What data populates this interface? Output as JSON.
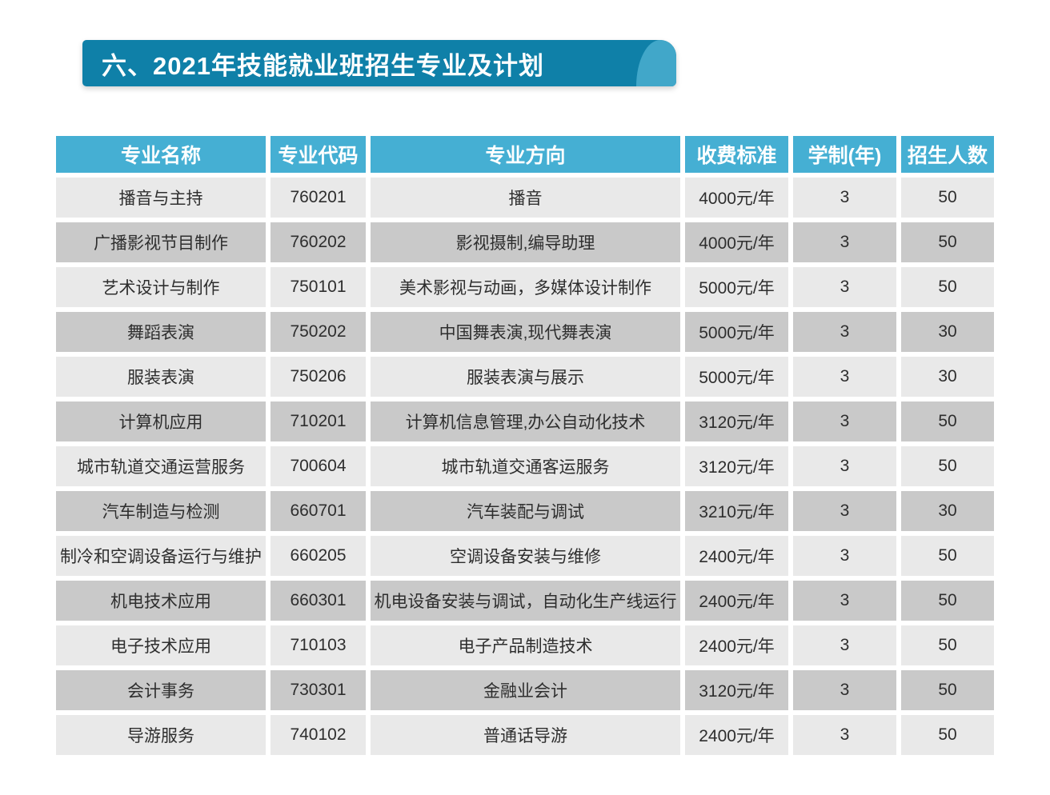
{
  "banner": {
    "title": "六、2021年技能就业班招生专业及计划",
    "background_color": "#0f80a8",
    "accent_color": "#41a7c9"
  },
  "table": {
    "columns": [
      "专业名称",
      "专业代码",
      "专业方向",
      "收费标准",
      "学制(年)",
      "招生人数"
    ],
    "header_background": "#45afd3",
    "row_color_odd": "#e9e9e9",
    "row_color_even": "#c9c9c9",
    "rows": [
      {
        "major": "播音与主持",
        "code": "760201",
        "direction": "播音",
        "fee": "4000元/年",
        "years": "3",
        "enrollment": "50"
      },
      {
        "major": "广播影视节目制作",
        "code": "760202",
        "direction": "影视摄制,编导助理",
        "fee": "4000元/年",
        "years": "3",
        "enrollment": "50"
      },
      {
        "major": "艺术设计与制作",
        "code": "750101",
        "direction": "美术影视与动画，多媒体设计制作",
        "fee": "5000元/年",
        "years": "3",
        "enrollment": "50"
      },
      {
        "major": "舞蹈表演",
        "code": "750202",
        "direction": "中国舞表演,现代舞表演",
        "fee": "5000元/年",
        "years": "3",
        "enrollment": "30"
      },
      {
        "major": "服装表演",
        "code": "750206",
        "direction": "服装表演与展示",
        "fee": "5000元/年",
        "years": "3",
        "enrollment": "30"
      },
      {
        "major": "计算机应用",
        "code": "710201",
        "direction": "计算机信息管理,办公自动化技术",
        "fee": "3120元/年",
        "years": "3",
        "enrollment": "50"
      },
      {
        "major": "城市轨道交通运营服务",
        "code": "700604",
        "direction": "城市轨道交通客运服务",
        "fee": "3120元/年",
        "years": "3",
        "enrollment": "50"
      },
      {
        "major": "汽车制造与检测",
        "code": "660701",
        "direction": "汽车装配与调试",
        "fee": "3210元/年",
        "years": "3",
        "enrollment": "30"
      },
      {
        "major": "制冷和空调设备运行与维护",
        "code": "660205",
        "direction": "空调设备安装与维修",
        "fee": "2400元/年",
        "years": "3",
        "enrollment": "50"
      },
      {
        "major": "机电技术应用",
        "code": "660301",
        "direction": "机电设备安装与调试，自动化生产线运行",
        "fee": "2400元/年",
        "years": "3",
        "enrollment": "50"
      },
      {
        "major": "电子技术应用",
        "code": "710103",
        "direction": "电子产品制造技术",
        "fee": "2400元/年",
        "years": "3",
        "enrollment": "50"
      },
      {
        "major": "会计事务",
        "code": "730301",
        "direction": "金融业会计",
        "fee": "3120元/年",
        "years": "3",
        "enrollment": "50"
      },
      {
        "major": "导游服务",
        "code": "740102",
        "direction": "普通话导游",
        "fee": "2400元/年",
        "years": "3",
        "enrollment": "50"
      }
    ]
  }
}
